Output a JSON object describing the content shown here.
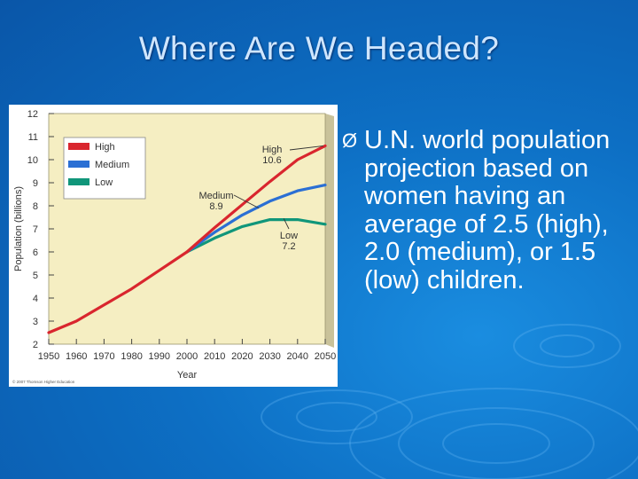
{
  "slide": {
    "title": "Where Are We Headed?",
    "bullet_marker": "Ø",
    "bullet_text": "U.N. world population projection based on women having an average of 2.5 (high), 2.0 (medium), or 1.5 (low) children."
  },
  "chart_data": {
    "type": "line",
    "title": "",
    "xlabel": "Year",
    "ylabel": "Population (billions)",
    "xlim": [
      1950,
      2050
    ],
    "ylim": [
      2,
      12
    ],
    "x_ticks": [
      1950,
      1960,
      1970,
      1980,
      1990,
      2000,
      2010,
      2020,
      2030,
      2040,
      2050
    ],
    "y_ticks": [
      2,
      3,
      4,
      5,
      6,
      7,
      8,
      9,
      10,
      11,
      12
    ],
    "legend_position": "top-left",
    "credit": "© 2007 Thomson Higher Education",
    "background_color": "#f5eec2",
    "shared": {
      "x": [
        1950,
        1960,
        1970,
        1980,
        1990,
        2000
      ],
      "y": [
        2.5,
        3.0,
        3.7,
        4.4,
        5.2,
        6.0
      ]
    },
    "series": [
      {
        "name": "High",
        "color": "#d9262e",
        "x": [
          2000,
          2010,
          2020,
          2030,
          2040,
          2050
        ],
        "y": [
          6.0,
          7.05,
          8.05,
          9.05,
          10.0,
          10.6
        ],
        "annotation": {
          "label": "High",
          "value": "10.6"
        }
      },
      {
        "name": "Medium",
        "color": "#2b6fd4",
        "x": [
          2000,
          2010,
          2020,
          2030,
          2040,
          2050
        ],
        "y": [
          6.0,
          6.85,
          7.6,
          8.2,
          8.65,
          8.9
        ],
        "annotation": {
          "label": "Medium",
          "value": "8.9"
        }
      },
      {
        "name": "Low",
        "color": "#10967a",
        "x": [
          2000,
          2010,
          2020,
          2030,
          2040,
          2050
        ],
        "y": [
          6.0,
          6.6,
          7.1,
          7.4,
          7.4,
          7.2
        ],
        "annotation": {
          "label": "Low",
          "value": "7.2"
        }
      }
    ]
  }
}
